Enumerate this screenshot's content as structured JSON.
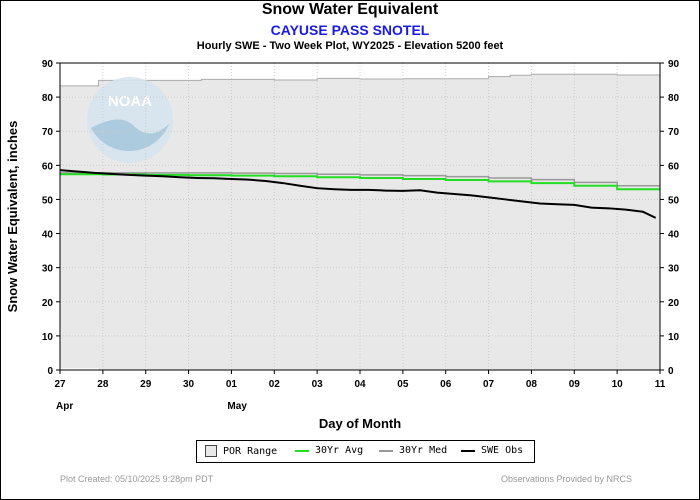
{
  "title": "Snow Water Equivalent",
  "subtitle": "CAYUSE PASS SNOTEL",
  "subtitle2": "Hourly SWE - Two Week Plot, WY2025 - Elevation 5200 feet",
  "watermark_text": "NOAA",
  "footer": {
    "created": "Plot Created: 05/10/2025 9:28pm PDT",
    "provider": "Observations Provided by NRCS"
  },
  "colors": {
    "por_fill": "#e8e8e8",
    "por_edge": "#aaaaaa",
    "avg": "#22dd22",
    "med": "#999999",
    "obs": "#000000"
  },
  "chart_data": {
    "type": "line",
    "title": "Snow Water Equivalent",
    "xlabel": "Day of Month",
    "ylabel": "Snow Water Equivalent, inches",
    "ylim": [
      0,
      90
    ],
    "yticks": [
      0,
      10,
      20,
      30,
      40,
      50,
      60,
      70,
      80,
      90
    ],
    "xlim": [
      0,
      14
    ],
    "x_tick_labels": [
      "27",
      "28",
      "29",
      "30",
      "01",
      "02",
      "03",
      "04",
      "05",
      "06",
      "07",
      "08",
      "09",
      "10",
      "11"
    ],
    "month_labels": [
      {
        "x": 0,
        "label": "Apr"
      },
      {
        "x": 4,
        "label": "May"
      }
    ],
    "grid": true,
    "legend_position": "bottom",
    "series": [
      {
        "name": "POR Range",
        "kind": "band",
        "x": [
          0,
          0.9,
          0.9,
          3.3,
          3.3,
          5.0,
          5.0,
          6.0,
          6.0,
          7.0,
          7.0,
          8.0,
          8.0,
          10.0,
          10.0,
          10.5,
          10.5,
          11.0,
          11.0,
          13.0,
          13.0,
          14.0
        ],
        "upper": [
          83.3,
          83.3,
          84.9,
          84.9,
          85.2,
          85.2,
          85.0,
          85.0,
          85.5,
          85.5,
          85.3,
          85.3,
          85.4,
          85.4,
          86.0,
          86.0,
          86.4,
          86.4,
          86.7,
          86.7,
          86.5,
          86.5
        ],
        "lower": [
          0.5,
          0.5,
          0,
          0,
          0,
          0,
          0,
          0,
          0,
          0,
          0,
          0,
          0,
          0,
          0,
          0,
          0,
          0,
          0,
          0,
          0,
          0
        ]
      },
      {
        "name": "30Yr Avg",
        "x": [
          0,
          1,
          1,
          2,
          2,
          3,
          3,
          4,
          4,
          5,
          5,
          6,
          6,
          7,
          7,
          8,
          8,
          9,
          9,
          10,
          10,
          11,
          11,
          12,
          12,
          13,
          13,
          14
        ],
        "values": [
          57.4,
          57.4,
          57.3,
          57.3,
          57.2,
          57.2,
          57.1,
          57.1,
          57.0,
          57.0,
          56.8,
          56.8,
          56.5,
          56.5,
          56.3,
          56.3,
          56.0,
          56.0,
          55.7,
          55.7,
          55.3,
          55.3,
          54.8,
          54.8,
          54.0,
          54.0,
          53.0,
          53.0
        ]
      },
      {
        "name": "30Yr Med",
        "x": [
          0,
          1,
          1,
          2,
          2,
          3,
          3,
          4,
          4,
          5,
          5,
          6,
          6,
          7,
          7,
          8,
          8,
          9,
          9,
          10,
          10,
          11,
          11,
          12,
          12,
          13,
          13,
          14
        ],
        "values": [
          57.8,
          57.8,
          57.8,
          57.8,
          57.8,
          57.8,
          57.8,
          57.8,
          57.7,
          57.7,
          57.6,
          57.6,
          57.4,
          57.4,
          57.2,
          57.2,
          57.0,
          57.0,
          56.7,
          56.7,
          56.3,
          56.3,
          55.8,
          55.8,
          55.0,
          55.0,
          54.0,
          54.0
        ]
      },
      {
        "name": "SWE Obs",
        "x": [
          0,
          0.4,
          0.8,
          1.2,
          1.6,
          2.0,
          2.4,
          2.8,
          3.2,
          3.6,
          4.0,
          4.4,
          4.8,
          5.2,
          5.6,
          6.0,
          6.4,
          6.8,
          7.2,
          7.6,
          8.0,
          8.4,
          8.8,
          9.2,
          9.6,
          10.0,
          10.4,
          10.8,
          11.2,
          11.6,
          12.0,
          12.4,
          12.8,
          13.2,
          13.6,
          13.9
        ],
        "values": [
          58.6,
          58.2,
          57.8,
          57.5,
          57.2,
          57.0,
          56.8,
          56.5,
          56.3,
          56.2,
          56.0,
          55.8,
          55.4,
          54.8,
          54.0,
          53.3,
          53.0,
          52.8,
          52.8,
          52.6,
          52.5,
          52.7,
          52.0,
          51.6,
          51.2,
          50.6,
          50.0,
          49.4,
          48.8,
          48.6,
          48.4,
          47.6,
          47.4,
          47.0,
          46.4,
          44.6
        ]
      }
    ]
  }
}
